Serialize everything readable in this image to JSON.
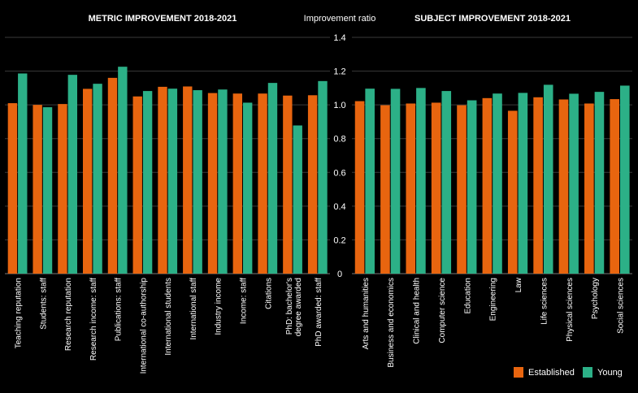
{
  "chart_data": [
    {
      "type": "bar",
      "title": "METRIC IMPROVEMENT 2018-2021",
      "ylabel": "Improvement ratio",
      "ylim": [
        0,
        1.4
      ],
      "yticks": [
        "0",
        "0.2",
        "0.4",
        "0.6",
        "0.8",
        "1.0",
        "1.2",
        "1.4"
      ],
      "grid": true,
      "categories": [
        "Teaching reputation",
        "Students: staff",
        "Research reputation",
        "Research income: staff",
        "Publications: staff",
        "International co-authorship",
        "International students",
        "International staff",
        "Industry income",
        "Income: staff",
        "Citations",
        "PhD: bachelor's degree awarded",
        "PhD awarded: staff"
      ],
      "series": [
        {
          "name": "Established",
          "values": [
            1.01,
            1.0,
            1.005,
            1.095,
            1.16,
            1.05,
            1.107,
            1.109,
            1.07,
            1.067,
            1.067,
            1.055,
            1.057
          ]
        },
        {
          "name": "Young",
          "values": [
            1.186,
            0.986,
            1.178,
            1.125,
            1.226,
            1.082,
            1.096,
            1.087,
            1.091,
            1.013,
            1.13,
            0.878,
            1.141
          ]
        }
      ]
    },
    {
      "type": "bar",
      "title": "SUBJECT IMPROVEMENT 2018-2021",
      "ylim": [
        0,
        1.4
      ],
      "grid": true,
      "categories": [
        "Arts and humanities",
        "Business and economics",
        "Clinical and health",
        "Computer science",
        "Education",
        "Engineering",
        "Law",
        "Life sciences",
        "Physical sciences",
        "Psychology",
        "Social sciences"
      ],
      "series": [
        {
          "name": "Established",
          "values": [
            1.022,
            0.998,
            1.008,
            1.013,
            0.998,
            1.04,
            0.965,
            1.045,
            1.032,
            1.008,
            1.034
          ]
        },
        {
          "name": "Young",
          "values": [
            1.096,
            1.095,
            1.1,
            1.082,
            1.027,
            1.067,
            1.071,
            1.119,
            1.066,
            1.077,
            1.114
          ]
        }
      ]
    }
  ],
  "legend": {
    "placement": "bottom-right",
    "items": [
      {
        "label": "Established",
        "color": "#e8650f"
      },
      {
        "label": "Young",
        "color": "#2cb087"
      }
    ]
  },
  "colors": {
    "established": "#e8650f",
    "young": "#2cb087",
    "background": "#000000",
    "grid": "#3a3a3a"
  }
}
